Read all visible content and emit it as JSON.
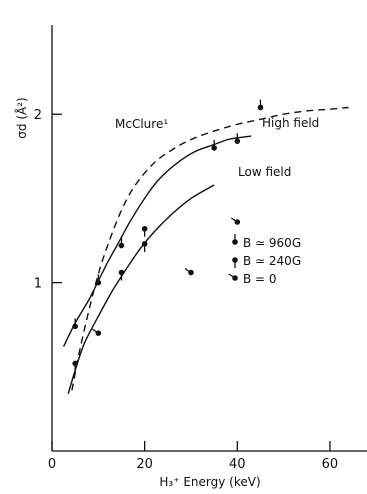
{
  "chart_data": {
    "type": "scatter",
    "xlabel": "H₃⁺ Energy (keV)",
    "ylabel": "σd (Å²)",
    "xlim": [
      0,
      68
    ],
    "ylim": [
      0,
      2.53
    ],
    "x_ticks": [
      "0",
      "20",
      "40",
      "60"
    ],
    "y_ticks": [
      "1",
      "2"
    ],
    "annotations": {
      "mcclure": "McClure¹",
      "high": "High field",
      "low": "Low field"
    },
    "legend": [
      {
        "label": "B ≃ 960G",
        "marker": "dot-tick-up"
      },
      {
        "label": "B ≃ 240G",
        "marker": "dot-tick-down"
      },
      {
        "label": "B = 0",
        "marker": "dot-tick-left"
      }
    ],
    "series": [
      {
        "name": "B ≃ 960G",
        "marker": "dot-tick-up",
        "points": [
          [
            5,
            0.74
          ],
          [
            10,
            1.0
          ],
          [
            15,
            1.22
          ],
          [
            35,
            1.8
          ],
          [
            40,
            1.84
          ],
          [
            45,
            2.04
          ]
        ]
      },
      {
        "name": "B ≃ 240G",
        "marker": "dot-tick-down",
        "points": [
          [
            5,
            0.52
          ],
          [
            15,
            1.06
          ],
          [
            20,
            1.23
          ],
          [
            20,
            1.32
          ]
        ]
      },
      {
        "name": "B = 0",
        "marker": "dot-tick-left",
        "points": [
          [
            10,
            0.7
          ],
          [
            30,
            1.06
          ],
          [
            40,
            1.36
          ]
        ]
      }
    ],
    "curves": [
      {
        "label": "McClure¹",
        "style": "dashed",
        "points": [
          [
            4.3,
            0.36
          ],
          [
            6,
            0.6
          ],
          [
            8,
            0.84
          ],
          [
            10,
            1.05
          ],
          [
            12,
            1.22
          ],
          [
            15,
            1.43
          ],
          [
            18,
            1.58
          ],
          [
            22,
            1.71
          ],
          [
            26,
            1.79
          ],
          [
            30,
            1.85
          ],
          [
            35,
            1.9
          ],
          [
            40,
            1.94
          ],
          [
            45,
            1.97
          ],
          [
            50,
            2.0
          ],
          [
            55,
            2.02
          ],
          [
            60,
            2.03
          ],
          [
            64,
            2.04
          ]
        ]
      },
      {
        "label": "High field",
        "style": "solid",
        "points": [
          [
            2.5,
            0.62
          ],
          [
            5,
            0.76
          ],
          [
            8,
            0.9
          ],
          [
            10,
            1.01
          ],
          [
            12,
            1.12
          ],
          [
            14,
            1.22
          ],
          [
            17,
            1.37
          ],
          [
            20,
            1.5
          ],
          [
            23,
            1.61
          ],
          [
            27,
            1.71
          ],
          [
            31,
            1.78
          ],
          [
            35,
            1.82
          ],
          [
            38,
            1.85
          ],
          [
            40,
            1.86
          ],
          [
            43,
            1.87
          ]
        ]
      },
      {
        "label": "Low field",
        "style": "solid",
        "points": [
          [
            3.5,
            0.34
          ],
          [
            5,
            0.48
          ],
          [
            7,
            0.64
          ],
          [
            10,
            0.8
          ],
          [
            13,
            0.95
          ],
          [
            16,
            1.08
          ],
          [
            19,
            1.2
          ],
          [
            22,
            1.3
          ],
          [
            26,
            1.41
          ],
          [
            30,
            1.5
          ],
          [
            35,
            1.58
          ]
        ]
      }
    ]
  }
}
